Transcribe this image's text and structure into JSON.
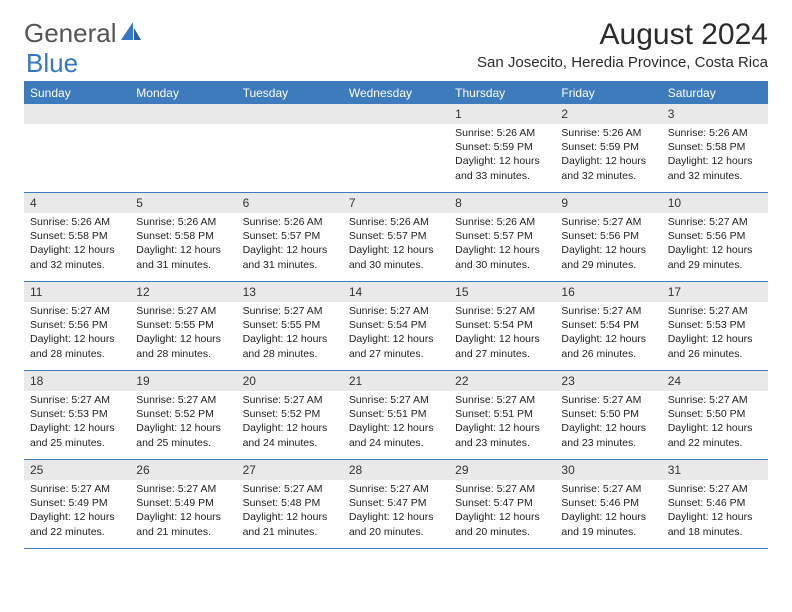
{
  "logo": {
    "text1": "General",
    "text2": "Blue"
  },
  "title": "August 2024",
  "location": "San Josecito, Heredia Province, Costa Rica",
  "colors": {
    "header_bar": "#3d7bbd",
    "daynum_bg": "#e9e9e9",
    "logo_blue": "#3478c5",
    "logo_gray": "#555555",
    "text": "#222222",
    "background": "#ffffff"
  },
  "weekdays": [
    "Sunday",
    "Monday",
    "Tuesday",
    "Wednesday",
    "Thursday",
    "Friday",
    "Saturday"
  ],
  "weeks": [
    [
      {
        "n": "",
        "sr": "",
        "ss": "",
        "dl": ""
      },
      {
        "n": "",
        "sr": "",
        "ss": "",
        "dl": ""
      },
      {
        "n": "",
        "sr": "",
        "ss": "",
        "dl": ""
      },
      {
        "n": "",
        "sr": "",
        "ss": "",
        "dl": ""
      },
      {
        "n": "1",
        "sr": "Sunrise: 5:26 AM",
        "ss": "Sunset: 5:59 PM",
        "dl": "Daylight: 12 hours and 33 minutes."
      },
      {
        "n": "2",
        "sr": "Sunrise: 5:26 AM",
        "ss": "Sunset: 5:59 PM",
        "dl": "Daylight: 12 hours and 32 minutes."
      },
      {
        "n": "3",
        "sr": "Sunrise: 5:26 AM",
        "ss": "Sunset: 5:58 PM",
        "dl": "Daylight: 12 hours and 32 minutes."
      }
    ],
    [
      {
        "n": "4",
        "sr": "Sunrise: 5:26 AM",
        "ss": "Sunset: 5:58 PM",
        "dl": "Daylight: 12 hours and 32 minutes."
      },
      {
        "n": "5",
        "sr": "Sunrise: 5:26 AM",
        "ss": "Sunset: 5:58 PM",
        "dl": "Daylight: 12 hours and 31 minutes."
      },
      {
        "n": "6",
        "sr": "Sunrise: 5:26 AM",
        "ss": "Sunset: 5:57 PM",
        "dl": "Daylight: 12 hours and 31 minutes."
      },
      {
        "n": "7",
        "sr": "Sunrise: 5:26 AM",
        "ss": "Sunset: 5:57 PM",
        "dl": "Daylight: 12 hours and 30 minutes."
      },
      {
        "n": "8",
        "sr": "Sunrise: 5:26 AM",
        "ss": "Sunset: 5:57 PM",
        "dl": "Daylight: 12 hours and 30 minutes."
      },
      {
        "n": "9",
        "sr": "Sunrise: 5:27 AM",
        "ss": "Sunset: 5:56 PM",
        "dl": "Daylight: 12 hours and 29 minutes."
      },
      {
        "n": "10",
        "sr": "Sunrise: 5:27 AM",
        "ss": "Sunset: 5:56 PM",
        "dl": "Daylight: 12 hours and 29 minutes."
      }
    ],
    [
      {
        "n": "11",
        "sr": "Sunrise: 5:27 AM",
        "ss": "Sunset: 5:56 PM",
        "dl": "Daylight: 12 hours and 28 minutes."
      },
      {
        "n": "12",
        "sr": "Sunrise: 5:27 AM",
        "ss": "Sunset: 5:55 PM",
        "dl": "Daylight: 12 hours and 28 minutes."
      },
      {
        "n": "13",
        "sr": "Sunrise: 5:27 AM",
        "ss": "Sunset: 5:55 PM",
        "dl": "Daylight: 12 hours and 28 minutes."
      },
      {
        "n": "14",
        "sr": "Sunrise: 5:27 AM",
        "ss": "Sunset: 5:54 PM",
        "dl": "Daylight: 12 hours and 27 minutes."
      },
      {
        "n": "15",
        "sr": "Sunrise: 5:27 AM",
        "ss": "Sunset: 5:54 PM",
        "dl": "Daylight: 12 hours and 27 minutes."
      },
      {
        "n": "16",
        "sr": "Sunrise: 5:27 AM",
        "ss": "Sunset: 5:54 PM",
        "dl": "Daylight: 12 hours and 26 minutes."
      },
      {
        "n": "17",
        "sr": "Sunrise: 5:27 AM",
        "ss": "Sunset: 5:53 PM",
        "dl": "Daylight: 12 hours and 26 minutes."
      }
    ],
    [
      {
        "n": "18",
        "sr": "Sunrise: 5:27 AM",
        "ss": "Sunset: 5:53 PM",
        "dl": "Daylight: 12 hours and 25 minutes."
      },
      {
        "n": "19",
        "sr": "Sunrise: 5:27 AM",
        "ss": "Sunset: 5:52 PM",
        "dl": "Daylight: 12 hours and 25 minutes."
      },
      {
        "n": "20",
        "sr": "Sunrise: 5:27 AM",
        "ss": "Sunset: 5:52 PM",
        "dl": "Daylight: 12 hours and 24 minutes."
      },
      {
        "n": "21",
        "sr": "Sunrise: 5:27 AM",
        "ss": "Sunset: 5:51 PM",
        "dl": "Daylight: 12 hours and 24 minutes."
      },
      {
        "n": "22",
        "sr": "Sunrise: 5:27 AM",
        "ss": "Sunset: 5:51 PM",
        "dl": "Daylight: 12 hours and 23 minutes."
      },
      {
        "n": "23",
        "sr": "Sunrise: 5:27 AM",
        "ss": "Sunset: 5:50 PM",
        "dl": "Daylight: 12 hours and 23 minutes."
      },
      {
        "n": "24",
        "sr": "Sunrise: 5:27 AM",
        "ss": "Sunset: 5:50 PM",
        "dl": "Daylight: 12 hours and 22 minutes."
      }
    ],
    [
      {
        "n": "25",
        "sr": "Sunrise: 5:27 AM",
        "ss": "Sunset: 5:49 PM",
        "dl": "Daylight: 12 hours and 22 minutes."
      },
      {
        "n": "26",
        "sr": "Sunrise: 5:27 AM",
        "ss": "Sunset: 5:49 PM",
        "dl": "Daylight: 12 hours and 21 minutes."
      },
      {
        "n": "27",
        "sr": "Sunrise: 5:27 AM",
        "ss": "Sunset: 5:48 PM",
        "dl": "Daylight: 12 hours and 21 minutes."
      },
      {
        "n": "28",
        "sr": "Sunrise: 5:27 AM",
        "ss": "Sunset: 5:47 PM",
        "dl": "Daylight: 12 hours and 20 minutes."
      },
      {
        "n": "29",
        "sr": "Sunrise: 5:27 AM",
        "ss": "Sunset: 5:47 PM",
        "dl": "Daylight: 12 hours and 20 minutes."
      },
      {
        "n": "30",
        "sr": "Sunrise: 5:27 AM",
        "ss": "Sunset: 5:46 PM",
        "dl": "Daylight: 12 hours and 19 minutes."
      },
      {
        "n": "31",
        "sr": "Sunrise: 5:27 AM",
        "ss": "Sunset: 5:46 PM",
        "dl": "Daylight: 12 hours and 18 minutes."
      }
    ]
  ]
}
